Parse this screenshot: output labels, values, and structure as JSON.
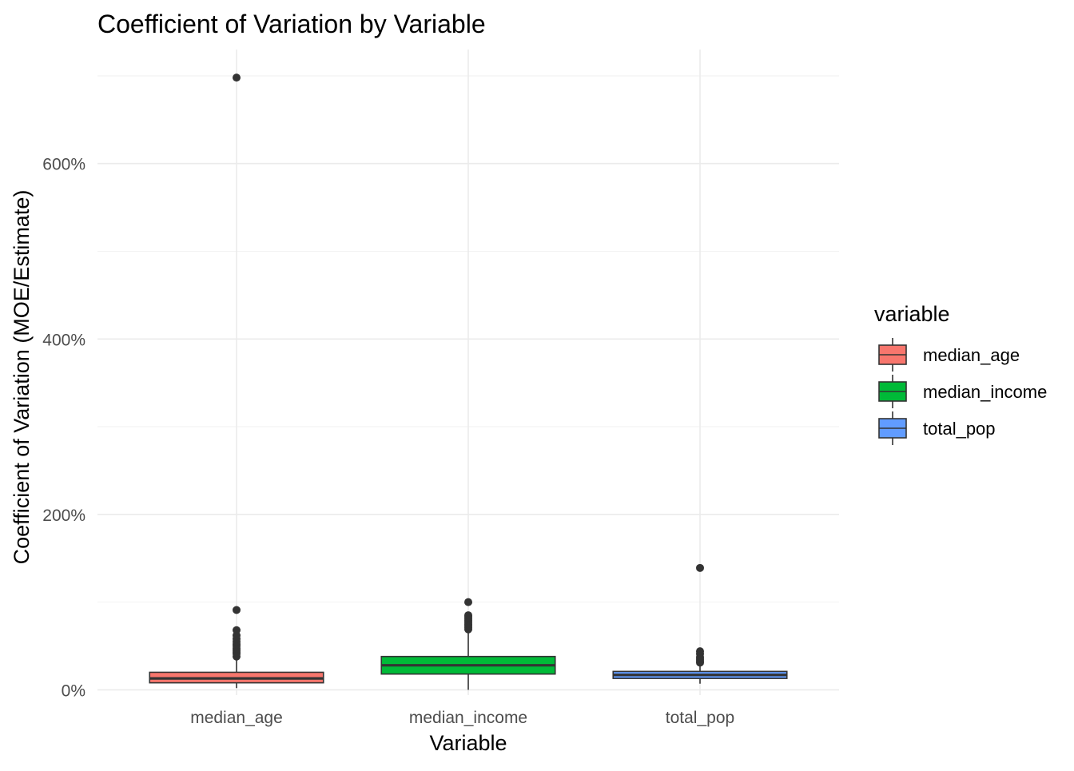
{
  "chart_data": {
    "type": "boxplot",
    "title": "Coefficient of Variation by Variable",
    "xlabel": "Variable",
    "ylabel": "Coefficient of Variation (MOE/Estimate)",
    "ylim": [
      -0.06,
      7.3
    ],
    "y_ticks": [
      0,
      2,
      4,
      6
    ],
    "y_tick_labels": [
      "0%",
      "200%",
      "400%",
      "600%"
    ],
    "y_minor_ticks": [
      1,
      3,
      5,
      7
    ],
    "categories": [
      "median_age",
      "median_income",
      "total_pop"
    ],
    "legend_title": "variable",
    "legend_position": "right",
    "grid": true,
    "series": [
      {
        "name": "median_age",
        "color": "#F8766D",
        "q1": 0.08,
        "median": 0.13,
        "q3": 0.2,
        "whisker_low": 0.02,
        "whisker_high": 0.37,
        "outliers": [
          0.38,
          0.41,
          0.43,
          0.45,
          0.47,
          0.5,
          0.52,
          0.55,
          0.58,
          0.62,
          0.68,
          0.91,
          6.98
        ]
      },
      {
        "name": "median_income",
        "color": "#00BA38",
        "q1": 0.18,
        "median": 0.28,
        "q3": 0.38,
        "whisker_low": 0.0,
        "whisker_high": 0.67,
        "outliers": [
          0.69,
          0.71,
          0.73,
          0.75,
          0.77,
          0.79,
          0.81,
          0.83,
          0.85,
          1.0
        ]
      },
      {
        "name": "total_pop",
        "color": "#619CFF",
        "q1": 0.13,
        "median": 0.17,
        "q3": 0.21,
        "whisker_low": 0.07,
        "whisker_high": 0.3,
        "outliers": [
          0.31,
          0.33,
          0.35,
          0.37,
          0.41,
          0.44,
          1.39
        ]
      }
    ]
  }
}
